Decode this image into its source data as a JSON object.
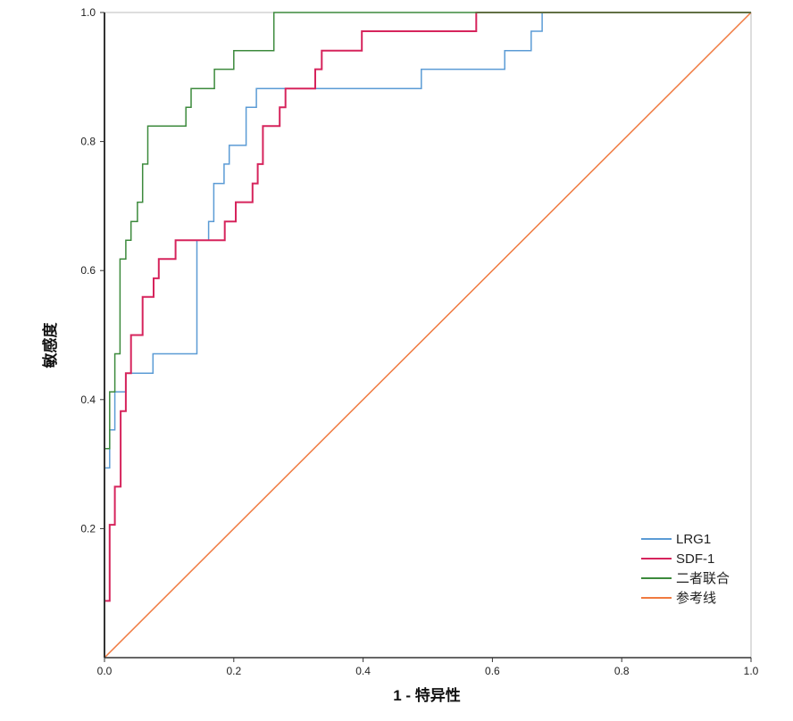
{
  "chart_data": {
    "type": "line",
    "title": "",
    "xlabel": "1 - 特异性",
    "ylabel": "敏感度",
    "xlim": [
      0,
      1
    ],
    "ylim": [
      0,
      1
    ],
    "x_ticks": [
      "0.0",
      "0.2",
      "0.4",
      "0.6",
      "0.8",
      "1.0"
    ],
    "y_ticks": [
      "0.2",
      "0.4",
      "0.6",
      "0.8",
      "1.0"
    ],
    "legend_position": "bottom-right",
    "series": [
      {
        "name": "LRG1",
        "color": "#5b9bd5",
        "points": [
          [
            0,
            0
          ],
          [
            0,
            0.294
          ],
          [
            0.008,
            0.294
          ],
          [
            0.008,
            0.353
          ],
          [
            0.016,
            0.353
          ],
          [
            0.016,
            0.412
          ],
          [
            0.033,
            0.412
          ],
          [
            0.033,
            0.441
          ],
          [
            0.075,
            0.441
          ],
          [
            0.075,
            0.471
          ],
          [
            0.143,
            0.471
          ],
          [
            0.143,
            0.647
          ],
          [
            0.161,
            0.647
          ],
          [
            0.161,
            0.676
          ],
          [
            0.169,
            0.676
          ],
          [
            0.169,
            0.735
          ],
          [
            0.185,
            0.735
          ],
          [
            0.185,
            0.765
          ],
          [
            0.193,
            0.765
          ],
          [
            0.193,
            0.794
          ],
          [
            0.219,
            0.794
          ],
          [
            0.219,
            0.853
          ],
          [
            0.235,
            0.853
          ],
          [
            0.235,
            0.882
          ],
          [
            0.49,
            0.882
          ],
          [
            0.49,
            0.912
          ],
          [
            0.619,
            0.912
          ],
          [
            0.619,
            0.941
          ],
          [
            0.66,
            0.941
          ],
          [
            0.66,
            0.971
          ],
          [
            0.677,
            0.971
          ],
          [
            0.677,
            1
          ],
          [
            1,
            1
          ]
        ]
      },
      {
        "name": "SDF-1",
        "color": "#d6245c",
        "points": [
          [
            0,
            0
          ],
          [
            0,
            0.088
          ],
          [
            0.008,
            0.088
          ],
          [
            0.008,
            0.206
          ],
          [
            0.016,
            0.206
          ],
          [
            0.016,
            0.265
          ],
          [
            0.025,
            0.265
          ],
          [
            0.025,
            0.382
          ],
          [
            0.033,
            0.382
          ],
          [
            0.033,
            0.441
          ],
          [
            0.041,
            0.441
          ],
          [
            0.041,
            0.5
          ],
          [
            0.059,
            0.5
          ],
          [
            0.059,
            0.559
          ],
          [
            0.076,
            0.559
          ],
          [
            0.076,
            0.588
          ],
          [
            0.084,
            0.588
          ],
          [
            0.084,
            0.618
          ],
          [
            0.11,
            0.618
          ],
          [
            0.11,
            0.647
          ],
          [
            0.186,
            0.647
          ],
          [
            0.186,
            0.676
          ],
          [
            0.203,
            0.676
          ],
          [
            0.203,
            0.706
          ],
          [
            0.229,
            0.706
          ],
          [
            0.229,
            0.735
          ],
          [
            0.237,
            0.735
          ],
          [
            0.237,
            0.765
          ],
          [
            0.245,
            0.765
          ],
          [
            0.245,
            0.824
          ],
          [
            0.271,
            0.824
          ],
          [
            0.271,
            0.853
          ],
          [
            0.28,
            0.853
          ],
          [
            0.28,
            0.882
          ],
          [
            0.326,
            0.882
          ],
          [
            0.326,
            0.912
          ],
          [
            0.336,
            0.912
          ],
          [
            0.336,
            0.941
          ],
          [
            0.398,
            0.941
          ],
          [
            0.398,
            0.971
          ],
          [
            0.575,
            0.971
          ],
          [
            0.575,
            1
          ],
          [
            1,
            1
          ]
        ]
      },
      {
        "name": "二者联合",
        "color": "#3c8a3c",
        "points": [
          [
            0,
            0
          ],
          [
            0,
            0.324
          ],
          [
            0.008,
            0.324
          ],
          [
            0.008,
            0.412
          ],
          [
            0.016,
            0.412
          ],
          [
            0.016,
            0.471
          ],
          [
            0.024,
            0.471
          ],
          [
            0.024,
            0.618
          ],
          [
            0.033,
            0.618
          ],
          [
            0.033,
            0.647
          ],
          [
            0.041,
            0.647
          ],
          [
            0.041,
            0.676
          ],
          [
            0.051,
            0.676
          ],
          [
            0.051,
            0.706
          ],
          [
            0.059,
            0.706
          ],
          [
            0.059,
            0.765
          ],
          [
            0.067,
            0.765
          ],
          [
            0.067,
            0.824
          ],
          [
            0.126,
            0.824
          ],
          [
            0.126,
            0.853
          ],
          [
            0.134,
            0.853
          ],
          [
            0.134,
            0.882
          ],
          [
            0.17,
            0.882
          ],
          [
            0.17,
            0.912
          ],
          [
            0.2,
            0.912
          ],
          [
            0.2,
            0.941
          ],
          [
            0.262,
            0.941
          ],
          [
            0.262,
            1
          ],
          [
            1,
            1
          ]
        ]
      },
      {
        "name": "参考线",
        "color": "#f07a40",
        "points": [
          [
            0,
            0
          ],
          [
            1,
            1
          ]
        ]
      }
    ]
  }
}
